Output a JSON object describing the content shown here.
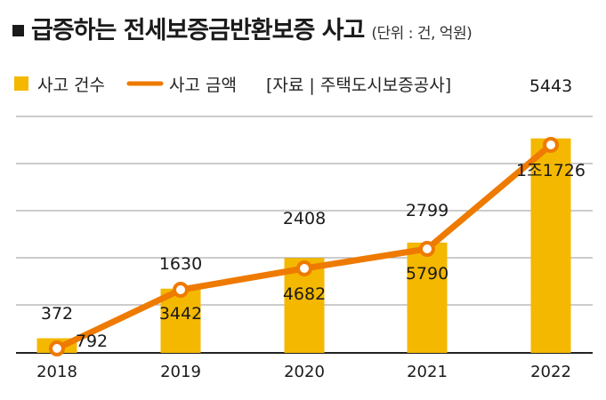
{
  "title": "급증하는 전세보증금반환보증 사고",
  "unit": "(단위 : 건, 억원)",
  "legend": {
    "bar_label": "사고 건수",
    "line_label": "사고 금액",
    "source": "[자료 | 주택도시보증공사]"
  },
  "colors": {
    "bar": "#F4B800",
    "line": "#EE7A00",
    "marker_fill": "#ffffff",
    "grid": "#9a9a9a"
  },
  "chart_data": {
    "type": "bar",
    "categories": [
      "2018",
      "2019",
      "2020",
      "2021",
      "2022"
    ],
    "series": [
      {
        "name": "사고 건수",
        "type": "bar",
        "values": [
          372,
          1630,
          2408,
          2799,
          5443
        ],
        "labels": [
          "372",
          "1630",
          "2408",
          "2799",
          "5443"
        ]
      },
      {
        "name": "사고 금액",
        "type": "line",
        "values": [
          792,
          3442,
          4682,
          5790,
          11726
        ],
        "labels": [
          "792",
          "3442",
          "4682",
          "5790",
          "1조1726"
        ]
      }
    ],
    "ylim": [
      0,
      6000
    ],
    "grid": true,
    "legend_position": "top-left"
  }
}
